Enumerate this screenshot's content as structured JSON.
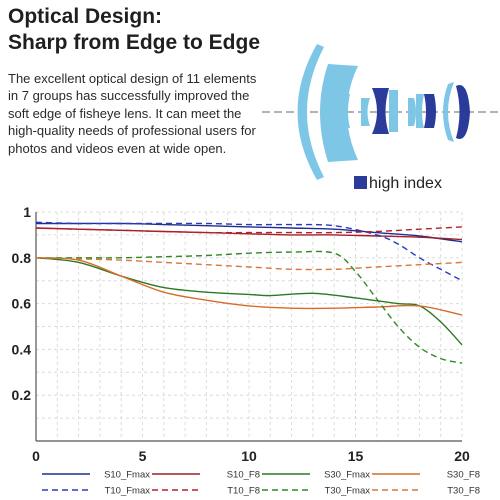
{
  "header": {
    "title_line1": "Optical Design:",
    "title_line2": "Sharp from Edge to Edge",
    "description": "The excellent optical design of 11 elements in 7 groups has successfully improved the soft edge of fisheye lens. It can meet the high-quality needs of professional users for photos and videos even at wide open."
  },
  "lens_diagram": {
    "legend_label": "high index",
    "colors": {
      "element": "#7ec6e6",
      "high_index": "#2b3b9a",
      "axis": "#999999"
    }
  },
  "chart_data": {
    "type": "line",
    "title": "",
    "xlabel": "",
    "ylabel": "",
    "xlim": [
      0,
      20
    ],
    "ylim": [
      0,
      1
    ],
    "x_ticks": [
      0,
      5,
      10,
      15,
      20
    ],
    "y_ticks": [
      1,
      0.8,
      0.6,
      0.4,
      0.2
    ],
    "grid": true,
    "legend_position": "bottom",
    "series": [
      {
        "name": "S10_Fmax",
        "color": "#1e2f8f",
        "dash": false,
        "x": [
          0,
          2,
          4,
          6,
          8,
          10,
          12,
          14,
          16,
          18,
          20
        ],
        "y": [
          0.95,
          0.95,
          0.95,
          0.945,
          0.94,
          0.935,
          0.93,
          0.925,
          0.91,
          0.895,
          0.87
        ]
      },
      {
        "name": "S10_F8",
        "color": "#a11f2a",
        "dash": false,
        "x": [
          0,
          2,
          4,
          6,
          8,
          10,
          12,
          14,
          16,
          18,
          20
        ],
        "y": [
          0.93,
          0.925,
          0.92,
          0.915,
          0.91,
          0.905,
          0.9,
          0.9,
          0.895,
          0.89,
          0.88
        ]
      },
      {
        "name": "S30_Fmax",
        "color": "#2a7a23",
        "dash": false,
        "x": [
          0,
          2,
          4,
          6,
          8,
          10,
          11,
          13,
          15,
          17,
          18,
          19,
          20
        ],
        "y": [
          0.8,
          0.78,
          0.72,
          0.67,
          0.65,
          0.64,
          0.635,
          0.645,
          0.625,
          0.6,
          0.59,
          0.52,
          0.42
        ]
      },
      {
        "name": "S30_F8",
        "color": "#d86a2a",
        "dash": false,
        "x": [
          0,
          2,
          4,
          6,
          8,
          10,
          12,
          14,
          16,
          18,
          20
        ],
        "y": [
          0.8,
          0.79,
          0.72,
          0.65,
          0.615,
          0.59,
          0.58,
          0.58,
          0.585,
          0.59,
          0.55
        ]
      },
      {
        "name": "T10_Fmax",
        "color": "#2a3bbd",
        "dash": true,
        "x": [
          0,
          2,
          4,
          6,
          8,
          10,
          12,
          14,
          16,
          17,
          18,
          19,
          20
        ],
        "y": [
          0.955,
          0.95,
          0.95,
          0.95,
          0.95,
          0.945,
          0.945,
          0.94,
          0.9,
          0.86,
          0.8,
          0.75,
          0.7
        ]
      },
      {
        "name": "T10_F8",
        "color": "#b81f2c",
        "dash": true,
        "x": [
          0,
          2,
          4,
          6,
          8,
          10,
          12,
          14,
          16,
          18,
          20
        ],
        "y": [
          0.93,
          0.925,
          0.92,
          0.915,
          0.91,
          0.91,
          0.91,
          0.91,
          0.915,
          0.925,
          0.935
        ]
      },
      {
        "name": "T30_Fmax",
        "color": "#2d8a24",
        "dash": true,
        "x": [
          0,
          2,
          4,
          6,
          8,
          10,
          12,
          14,
          15,
          16,
          17,
          18,
          19,
          20
        ],
        "y": [
          0.8,
          0.8,
          0.8,
          0.805,
          0.81,
          0.82,
          0.825,
          0.82,
          0.74,
          0.62,
          0.5,
          0.41,
          0.36,
          0.34
        ]
      },
      {
        "name": "T30_F8",
        "color": "#d6783a",
        "dash": true,
        "x": [
          0,
          2,
          4,
          6,
          8,
          10,
          12,
          14,
          16,
          18,
          20
        ],
        "y": [
          0.8,
          0.795,
          0.79,
          0.78,
          0.77,
          0.76,
          0.75,
          0.75,
          0.76,
          0.77,
          0.78
        ]
      }
    ],
    "legend_order": [
      [
        "S10_Fmax",
        "S10_F8",
        "S30_Fmax",
        "S30_F8"
      ],
      [
        "T10_Fmax",
        "T10_F8",
        "T30_Fmax",
        "T30_F8"
      ]
    ]
  }
}
